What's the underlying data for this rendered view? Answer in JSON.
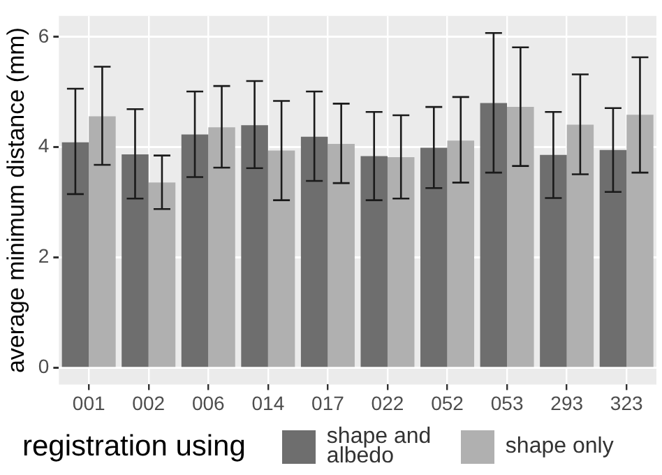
{
  "chart_data": {
    "type": "bar",
    "ylabel": "average minimum distance (mm)",
    "legend_title": "registration using",
    "categories": [
      "001",
      "002",
      "006",
      "014",
      "017",
      "022",
      "052",
      "053",
      "293",
      "323"
    ],
    "series": [
      {
        "name": "shape and albedo",
        "color": "#6e6e6e",
        "values": [
          4.09,
          3.87,
          4.23,
          4.4,
          4.19,
          3.84,
          3.99,
          4.8,
          3.86,
          3.95
        ],
        "errors": [
          [
            3.15,
            5.06
          ],
          [
            3.07,
            4.69
          ],
          [
            3.46,
            5.01
          ],
          [
            3.62,
            5.2
          ],
          [
            3.39,
            5.01
          ],
          [
            3.04,
            4.64
          ],
          [
            3.26,
            4.73
          ],
          [
            3.54,
            6.07
          ],
          [
            3.08,
            4.64
          ],
          [
            3.19,
            4.71
          ]
        ]
      },
      {
        "name": "shape only",
        "color": "#b0b0b0",
        "values": [
          4.56,
          3.36,
          4.36,
          3.94,
          4.06,
          3.82,
          4.12,
          4.73,
          4.41,
          4.59
        ],
        "errors": [
          [
            3.68,
            5.46
          ],
          [
            2.88,
            3.85
          ],
          [
            3.63,
            5.11
          ],
          [
            3.04,
            4.84
          ],
          [
            3.35,
            4.79
          ],
          [
            3.07,
            4.58
          ],
          [
            3.36,
            4.91
          ],
          [
            3.66,
            5.81
          ],
          [
            3.51,
            5.32
          ],
          [
            3.54,
            5.63
          ]
        ]
      }
    ],
    "ylim": [
      -0.3,
      6.38
    ],
    "yticks": [
      0,
      2,
      4,
      6
    ],
    "grid": true,
    "legend": "bottom"
  }
}
